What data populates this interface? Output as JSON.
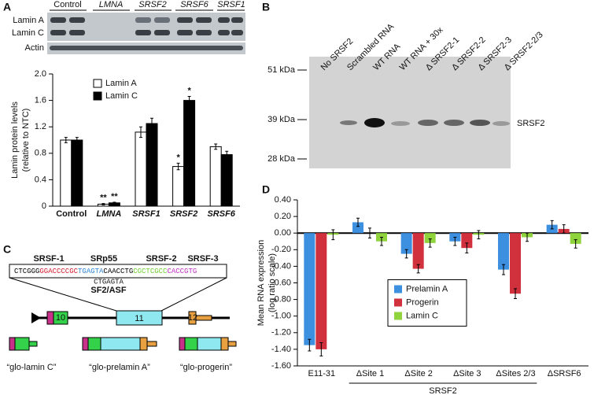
{
  "panel_labels": [
    "A",
    "B",
    "C",
    "D"
  ],
  "blot_a": {
    "columns": [
      "Control",
      "LMNA",
      "SRSF2",
      "SRSF6",
      "SRSF1"
    ],
    "rows": [
      "Lamin A",
      "Lamin C",
      "Actin"
    ]
  },
  "blot_b": {
    "lanes": [
      "No SRSF2",
      "Scrambled RNA",
      "WT RNA",
      "WT RNA + 30x",
      "Δ SRSF2-1",
      "Δ SRSF2-2",
      "Δ SRSF2-3",
      "Δ SRSF2-2/3"
    ],
    "markers": [
      "51 kDa",
      "39 kDa",
      "28 kDa"
    ],
    "band": "SRSF2"
  },
  "diagram_c": {
    "factors": [
      "SRSF-1",
      "SRp55",
      "SRSF-2",
      "SRSF-3"
    ],
    "sequence": [
      "CTCGGG",
      "GGACCCCGC",
      "TGAGTA",
      "CAACCTG",
      "CGCTCGCC",
      "CACCGTG"
    ],
    "alt_site": "CTGAGTA",
    "alt_factor": "SF2/ASF",
    "exons": [
      "10",
      "11",
      "12"
    ],
    "constructs": [
      "“glo-lamin C”",
      "“glo-prelamin A”",
      "“glo-progerin”"
    ]
  },
  "chart_data": [
    {
      "type": "bar",
      "y_label": [
        "Lamin protein levels",
        "(relative to NTC)"
      ],
      "categories": [
        "Control",
        "LMNA",
        "SRSF1",
        "SRSF2",
        "SRSF6"
      ],
      "series": [
        {
          "name": "Lamin A",
          "color": "#ffffff",
          "values": [
            1.0,
            0.03,
            1.12,
            0.6,
            0.9
          ],
          "errors": [
            0.04,
            0.01,
            0.08,
            0.05,
            0.04
          ],
          "annotations": [
            null,
            "**",
            null,
            "*",
            null
          ]
        },
        {
          "name": "Lamin C",
          "color": "#000000",
          "values": [
            1.0,
            0.05,
            1.25,
            1.6,
            0.78
          ],
          "errors": [
            0.04,
            0.01,
            0.08,
            0.06,
            0.05
          ],
          "annotations": [
            null,
            "**",
            null,
            "*",
            null
          ]
        }
      ],
      "ylim": [
        0,
        2
      ],
      "yticks": [
        0,
        0.4,
        0.8,
        1.2,
        1.6,
        {
          "value": 2,
          "label": "2.0"
        }
      ],
      "legend": "top-left"
    },
    {
      "type": "bar",
      "y_label": [
        "Mean RNA expression",
        "(log ratio scale)"
      ],
      "categories": [
        "E11-31",
        "ΔSite 1",
        "ΔSite 2",
        "ΔSite 3",
        "ΔSites 2/3",
        "ΔSRSF6"
      ],
      "group_label": "SRSF2",
      "series": [
        {
          "name": "Prelamin A",
          "color": "#3d8fe0",
          "values": [
            -1.35,
            0.13,
            -0.25,
            -0.1,
            -0.44,
            0.1
          ],
          "errors": [
            0.07,
            0.05,
            0.05,
            0.05,
            0.06,
            0.05
          ]
        },
        {
          "name": "Progerin",
          "color": "#d1303d",
          "values": [
            -1.4,
            0.0,
            -0.43,
            -0.18,
            -0.73,
            0.05
          ],
          "errors": [
            0.08,
            0.06,
            0.05,
            0.06,
            0.06,
            0.05
          ]
        },
        {
          "name": "Lamin C",
          "color": "#8fd43c",
          "values": [
            -0.02,
            -0.1,
            -0.12,
            -0.02,
            -0.05,
            -0.13
          ],
          "errors": [
            0.06,
            0.05,
            0.05,
            0.05,
            0.05,
            0.05
          ]
        }
      ],
      "ylim": [
        -1.6,
        0.4
      ],
      "yticks": [
        {
          "value": -1.6,
          "label": "-1.60"
        },
        {
          "value": -1.4,
          "label": "-1.40"
        },
        {
          "value": -1.2,
          "label": "-1.20"
        },
        {
          "value": -1,
          "label": "-1.00"
        },
        {
          "value": -0.8,
          "label": "-0.80"
        },
        {
          "value": -0.6,
          "label": "-0.60"
        },
        {
          "value": -0.4,
          "label": "-0.40"
        },
        {
          "value": -0.2,
          "label": "-0.20"
        },
        {
          "value": 0,
          "label": "0.00"
        },
        {
          "value": 0.2,
          "label": "0.20"
        },
        {
          "value": 0.4,
          "label": "0.40"
        }
      ],
      "legend": "center"
    }
  ]
}
